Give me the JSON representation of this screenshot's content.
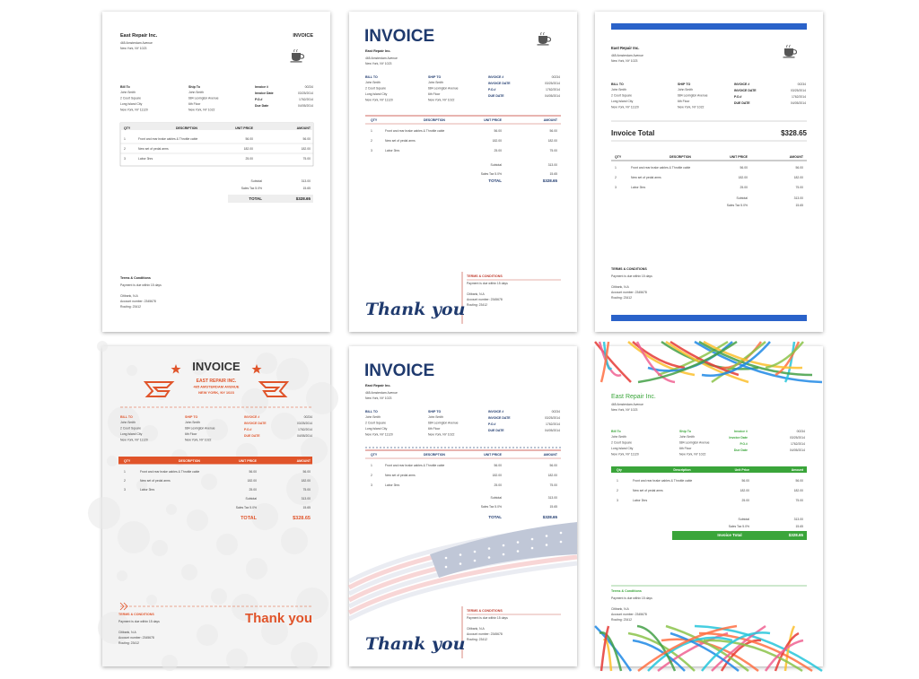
{
  "invoice": {
    "bill_to": [
      "John Smith",
      "2 Court Square",
      "Long Island City",
      "New York, NY 11120"
    ],
    "ship_to": [
      "John Smith",
      "684 Lexington Avenue",
      "6th Floor",
      "New York, NY 1022"
    ],
    "meta_values": [
      "00234",
      "03/25/2014",
      "1762/2014",
      "04/05/2014"
    ],
    "items": [
      [
        "1",
        "Front and rear brake cables & Throttle cable",
        "56.00",
        "56.00"
      ],
      [
        "2",
        "New set of pedal arms",
        "182.00",
        "182.00"
      ],
      [
        "3",
        "Labor 3hrs",
        "25.00",
        "75.00"
      ]
    ],
    "subtotal": "313.00",
    "sales_tax": "15.65",
    "total": "$328.65",
    "terms": "Payment is due within 15 days",
    "bank": [
      "Citibank, N.A",
      "Account number: 2345678",
      "Routing: 23412"
    ]
  },
  "templates": [
    {
      "color": "#222222",
      "rule_color": "#999999",
      "company": [
        "East Repair Inc.",
        "465 Amsterdam Avenue",
        "New York, NY 1023"
      ],
      "heading": "INVOICE",
      "labels": {
        "bill_to": "Bill To",
        "ship_to": "Ship To",
        "meta": [
          "Invoice #",
          "Invoice Date",
          "P.O.#",
          "Due Date"
        ],
        "columns": [
          "QTY",
          "DESCRIPTION",
          "UNIT PRICE",
          "AMOUNT"
        ],
        "subtotal": "Subtotal",
        "sales_tax": "Sales Tax 5.0%",
        "total": "TOTAL",
        "terms": "Terms & Conditions"
      }
    },
    {
      "color": "#1f3a6e",
      "rule_color": "#c0392b",
      "company": [
        "East Repair Inc.",
        "465 Amsterdam Avenue",
        "New York, NY 1023"
      ],
      "heading": "INVOICE",
      "labels": {
        "bill_to": "BILL TO",
        "ship_to": "SHIP TO",
        "meta": [
          "INVOICE #",
          "INVOICE DATE",
          "P.O.#",
          "DUE DATE"
        ],
        "columns": [
          "QTY",
          "DESCRIPTION",
          "UNIT PRICE",
          "AMOUNT"
        ],
        "subtotal": "Subtotal",
        "sales_tax": "Sales Tax 5.0%",
        "total": "TOTAL",
        "terms": "TERMS & CONDITIONS",
        "thank_you": "Thank you"
      }
    },
    {
      "color": "#222222",
      "rule_color": "#2a62c9",
      "company": [
        "East Repair Inc.",
        "465 Amsterdam Avenue",
        "New York, NY 1023"
      ],
      "labels": {
        "bill_to": "BILL TO",
        "ship_to": "SHIP TO",
        "meta": [
          "INVOICE #",
          "INVOICE DATE",
          "P.O.#",
          "DUE DATE"
        ],
        "columns": [
          "QTY",
          "DESCRIPTION",
          "UNIT PRICE",
          "AMOUNT"
        ],
        "subtotal": "Subtotal",
        "sales_tax": "Sales Tax 5.0%",
        "invoice_total": "Invoice Total",
        "terms": "TERMS & CONDITIONS"
      }
    },
    {
      "color": "#e0542a",
      "rule_color": "#e0542a",
      "company": [
        "EAST REPAIR INC.",
        "465 AMSTERDAM AVENUE",
        "NEW YORK, NY 1023"
      ],
      "heading": "INVOICE",
      "labels": {
        "bill_to": "BILL TO",
        "ship_to": "SHIP TO",
        "meta": [
          "INVOICE #",
          "INVOICE DATE",
          "P.O.#",
          "DUE DATE"
        ],
        "columns": [
          "QTY",
          "DESCRIPTION",
          "UNIT PRICE",
          "AMOUNT"
        ],
        "subtotal": "Subtotal",
        "sales_tax": "Sales Tax 5.0%",
        "total": "TOTAL",
        "terms": "TERMS & CONDITIONS",
        "thank_you": "Thank you"
      }
    },
    {
      "color": "#1f3a6e",
      "rule_color": "#c0392b",
      "company": [
        "East Repair Inc.",
        "465 Amsterdam Avenue",
        "New York, NY 1023"
      ],
      "heading": "INVOICE",
      "labels": {
        "bill_to": "BILL TO",
        "ship_to": "SHIP TO",
        "meta": [
          "INVOICE #",
          "INVOICE DATE",
          "P.O.#",
          "DUE DATE"
        ],
        "columns": [
          "QTY",
          "DESCRIPTION",
          "UNIT PRICE",
          "AMOUNT"
        ],
        "subtotal": "Subtotal",
        "sales_tax": "Sales Tax 5.0%",
        "total": "TOTAL",
        "terms": "TERMS & CONDITIONS",
        "thank_you": "Thank you"
      }
    },
    {
      "color": "#3aa53a",
      "rule_color": "#3aa53a",
      "company": [
        "East Repair Inc.",
        "465 Amsterdam Avenue",
        "New York, NY 1023"
      ],
      "labels": {
        "bill_to": "Bill To",
        "ship_to": "Ship To",
        "meta": [
          "Invoice #",
          "Invoice Date",
          "P.O.#",
          "Due Date"
        ],
        "columns": [
          "Qty",
          "Description",
          "Unit Price",
          "Amount"
        ],
        "subtotal": "Subtotal",
        "sales_tax": "Sales Tax 5.0%",
        "total": "Invoice Total",
        "terms": "Terms & Conditions"
      }
    }
  ]
}
